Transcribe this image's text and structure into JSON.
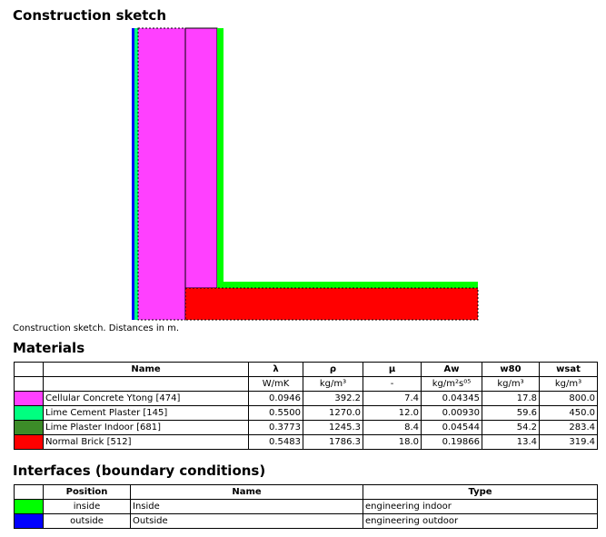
{
  "sketch": {
    "title": "Construction sketch",
    "caption": "Construction sketch. Distances in m."
  },
  "materials": {
    "title": "Materials",
    "header": [
      "Name",
      "λ",
      "ρ",
      "μ",
      "Aw",
      "w80",
      "wsat"
    ],
    "units": [
      "W/mK",
      "kg/m³",
      "-",
      "kg/m²s⁰⁵",
      "kg/m³",
      "kg/m³"
    ],
    "rows": [
      {
        "color": "#ff40ff",
        "cells": [
          "Cellular Concrete Ytong [474]",
          "0.0946",
          "392.2",
          "7.4",
          "0.04345",
          "17.8",
          "800.0"
        ]
      },
      {
        "color": "#00ff80",
        "cells": [
          "Lime Cement Plaster [145]",
          "0.5500",
          "1270.0",
          "12.0",
          "0.00930",
          "59.6",
          "450.0"
        ]
      },
      {
        "color": "#3c8c28",
        "cells": [
          "Lime Plaster Indoor [681]",
          "0.3773",
          "1245.3",
          "8.4",
          "0.04544",
          "54.2",
          "283.4"
        ]
      },
      {
        "color": "#ff0000",
        "cells": [
          "Normal Brick [512]",
          "0.5483",
          "1786.3",
          "18.0",
          "0.19866",
          "13.4",
          "319.4"
        ]
      }
    ]
  },
  "interfaces": {
    "title": "Interfaces (boundary conditions)",
    "header": [
      "Position",
      "Name",
      "Type"
    ],
    "rows": [
      {
        "color": "#00ff00",
        "cells": [
          "inside",
          "Inside",
          "engineering indoor"
        ]
      },
      {
        "color": "#0000ff",
        "cells": [
          "outside",
          "Outside",
          "engineering outdoor"
        ]
      }
    ]
  }
}
